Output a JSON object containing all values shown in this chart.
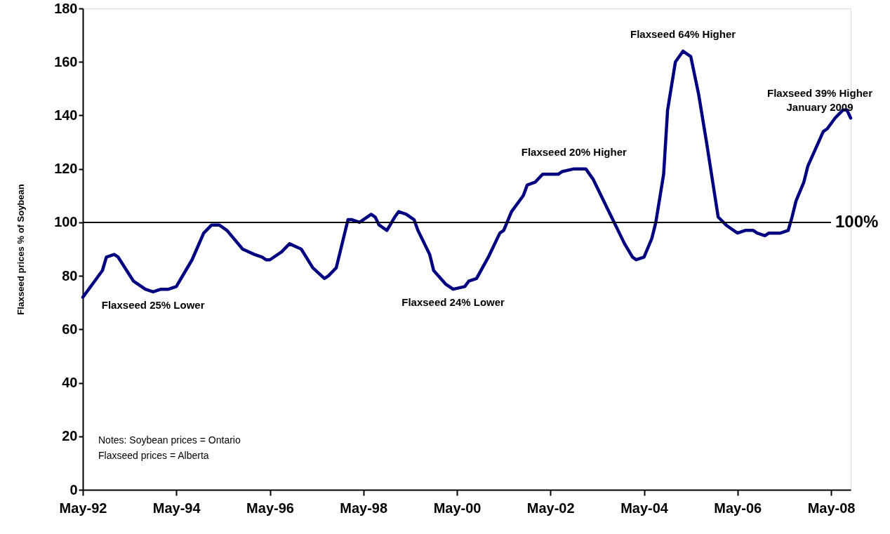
{
  "chart_data": {
    "type": "line",
    "ylabel": "Flaxseed prices % of Soybean",
    "series": [
      {
        "color": "#000080",
        "x": [
          "1992-05",
          "1992-08",
          "1992-10",
          "1992-11",
          "1993-01",
          "1993-02",
          "1993-06",
          "1993-09",
          "1993-11",
          "1994-01",
          "1994-03",
          "1994-05",
          "1994-09",
          "1994-12",
          "1995-02",
          "1995-04",
          "1995-06",
          "1995-10",
          "1996-01",
          "1996-03",
          "1996-04",
          "1996-05",
          "1996-08",
          "1996-10",
          "1997-01",
          "1997-04",
          "1997-07",
          "1997-08",
          "1997-10",
          "1998-01",
          "1998-02",
          "1998-04",
          "1998-07",
          "1998-08",
          "1998-09",
          "1998-11",
          "1999-01",
          "1999-02",
          "1999-04",
          "1999-06",
          "1999-07",
          "1999-10",
          "1999-11",
          "2000-02",
          "2000-04",
          "2000-07",
          "2000-08",
          "2000-10",
          "2001-01",
          "2001-04",
          "2001-05",
          "2001-07",
          "2001-10",
          "2001-11",
          "2002-01",
          "2002-03",
          "2002-05",
          "2002-07",
          "2002-08",
          "2002-11",
          "2003-01",
          "2003-02",
          "2003-04",
          "2003-05",
          "2003-08",
          "2003-12",
          "2004-02",
          "2004-03",
          "2004-05",
          "2004-07",
          "2004-08",
          "2004-10",
          "2004-11",
          "2005-01",
          "2005-03",
          "2005-05",
          "2005-07",
          "2005-09",
          "2005-12",
          "2006-02",
          "2006-03",
          "2006-05",
          "2006-07",
          "2006-09",
          "2006-10",
          "2006-12",
          "2007-01",
          "2007-04",
          "2007-06",
          "2007-07",
          "2007-08",
          "2007-10",
          "2007-11",
          "2008-03",
          "2008-04",
          "2008-06",
          "2008-08",
          "2008-09",
          "2008-10"
        ],
        "values": [
          72,
          78,
          82,
          87,
          88,
          87,
          78,
          75,
          74,
          75,
          75,
          76,
          86,
          96,
          99,
          99,
          97,
          90,
          88,
          87,
          86,
          86,
          89,
          92,
          90,
          83,
          79,
          80,
          83,
          101,
          101,
          100,
          103,
          102,
          99,
          97,
          102,
          104,
          103,
          101,
          97,
          88,
          82,
          77,
          75,
          76,
          78,
          79,
          87,
          96,
          97,
          104,
          110,
          114,
          115,
          118,
          118,
          118,
          119,
          120,
          120,
          120,
          116,
          113,
          104,
          92,
          87,
          86,
          87,
          94,
          100,
          118,
          142,
          160,
          164,
          162,
          148,
          130,
          102,
          99,
          98,
          96,
          97,
          97,
          96,
          95,
          96,
          96,
          97,
          102,
          108,
          115,
          121,
          134,
          135,
          139,
          142,
          142,
          139
        ]
      }
    ],
    "xlim": [
      "1992-05",
      "2008-10"
    ],
    "xticks": [
      {
        "value": "1992-05",
        "label": "May-92"
      },
      {
        "value": "1994-05",
        "label": "May-94"
      },
      {
        "value": "1996-05",
        "label": "May-96"
      },
      {
        "value": "1998-05",
        "label": "May-98"
      },
      {
        "value": "2000-05",
        "label": "May-00"
      },
      {
        "value": "2002-05",
        "label": "May-02"
      },
      {
        "value": "2004-05",
        "label": "May-04"
      },
      {
        "value": "2006-05",
        "label": "May-06"
      },
      {
        "value": "2008-05",
        "label": "May-08"
      }
    ],
    "ylim": [
      0,
      180
    ],
    "yticks": [
      0,
      20,
      40,
      60,
      80,
      100,
      120,
      140,
      160,
      180
    ],
    "grid": false,
    "marker": "none",
    "line_style": "solid",
    "ref_lines": [
      {
        "axis": "y",
        "value": 100,
        "label": "100%",
        "color": "#000000"
      }
    ],
    "annotations": [
      {
        "text": "Flaxseed 25% Lower",
        "x": "1993-11",
        "y": 74
      },
      {
        "text": "Flaxseed 24% Lower",
        "x": "2000-04",
        "y": 75
      },
      {
        "text": "Flaxseed 20% Higher",
        "x": "2002-11",
        "y": 120
      },
      {
        "text": "Flaxseed 64% Higher",
        "x": "2005-03",
        "y": 164
      },
      {
        "text": "Flaxseed 39% Higher\nJanuary 2009",
        "x": "2008-09",
        "y": 142
      },
      "Notes: Soybean prices        = Ontario",
      "             Flaxseed prices        = Alberta"
    ]
  }
}
